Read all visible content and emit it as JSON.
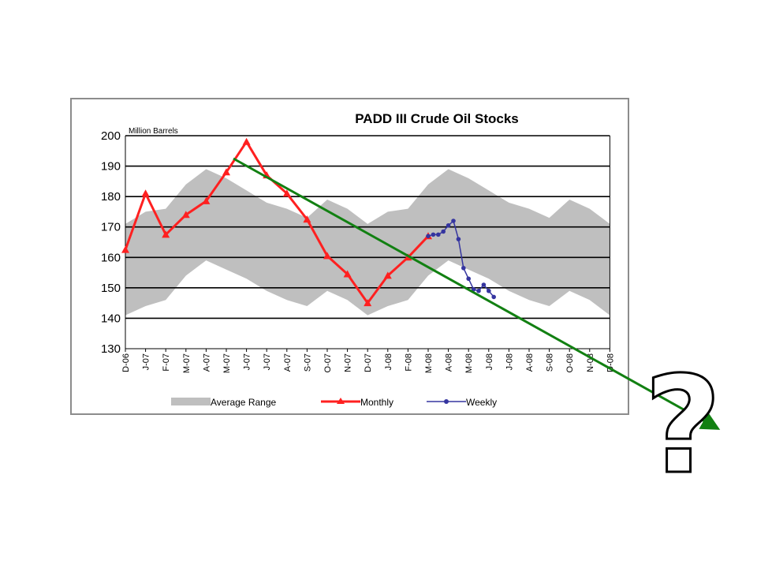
{
  "chart_data": {
    "type": "line",
    "title": "PADD III Crude Oil Stocks",
    "unit_label": "Million Barrels",
    "ylim": [
      130,
      200
    ],
    "yticks": [
      130,
      140,
      150,
      160,
      170,
      180,
      190,
      200
    ],
    "grid": true,
    "legend_position": "bottom",
    "categories": [
      "D-06",
      "J-07",
      "F-07",
      "M-07",
      "A-07",
      "M-07",
      "J-07",
      "J-07",
      "A-07",
      "S-07",
      "O-07",
      "N-07",
      "D-07",
      "J-08",
      "F-08",
      "M-08",
      "A-08",
      "M-08",
      "J-08",
      "J-08",
      "A-08",
      "S-08",
      "O-08",
      "N-08",
      "D-08"
    ],
    "average_range": {
      "name": "Average Range",
      "color": "#bfbfbf",
      "upper": [
        171,
        175,
        176,
        184,
        189,
        186,
        182,
        178,
        176,
        173,
        179,
        176,
        171,
        175,
        176,
        184,
        189,
        186,
        182,
        178,
        176,
        173,
        179,
        176,
        171
      ],
      "lower": [
        141,
        144,
        146,
        154,
        159,
        156,
        153,
        149,
        146,
        144,
        149,
        146,
        141,
        144,
        146,
        154,
        159,
        156,
        153,
        149,
        146,
        144,
        149,
        146,
        141
      ]
    },
    "series": [
      {
        "name": "Monthly",
        "color": "#ff2020",
        "x": [
          0,
          1,
          2,
          3,
          4,
          5,
          6,
          7,
          8,
          9,
          10,
          11,
          12,
          13,
          14,
          15
        ],
        "values": [
          162.5,
          181,
          167.5,
          174,
          178.5,
          188,
          198,
          187,
          181,
          172.5,
          160.5,
          154.5,
          145,
          154,
          160,
          167
        ]
      },
      {
        "name": "Weekly",
        "color": "#3535a0",
        "x": [
          15.0,
          15.25,
          15.5,
          15.75,
          16.0,
          16.25,
          16.5,
          16.75,
          17.0,
          17.25,
          17.5,
          17.75,
          18.0,
          18.25
        ],
        "values": [
          167,
          167.5,
          167.5,
          168.5,
          170.5,
          172,
          166,
          156.5,
          153,
          149.5,
          149,
          151,
          149,
          147
        ]
      }
    ],
    "annotation": {
      "type": "trend-arrow",
      "color": "#128012",
      "symbol": "?"
    }
  }
}
